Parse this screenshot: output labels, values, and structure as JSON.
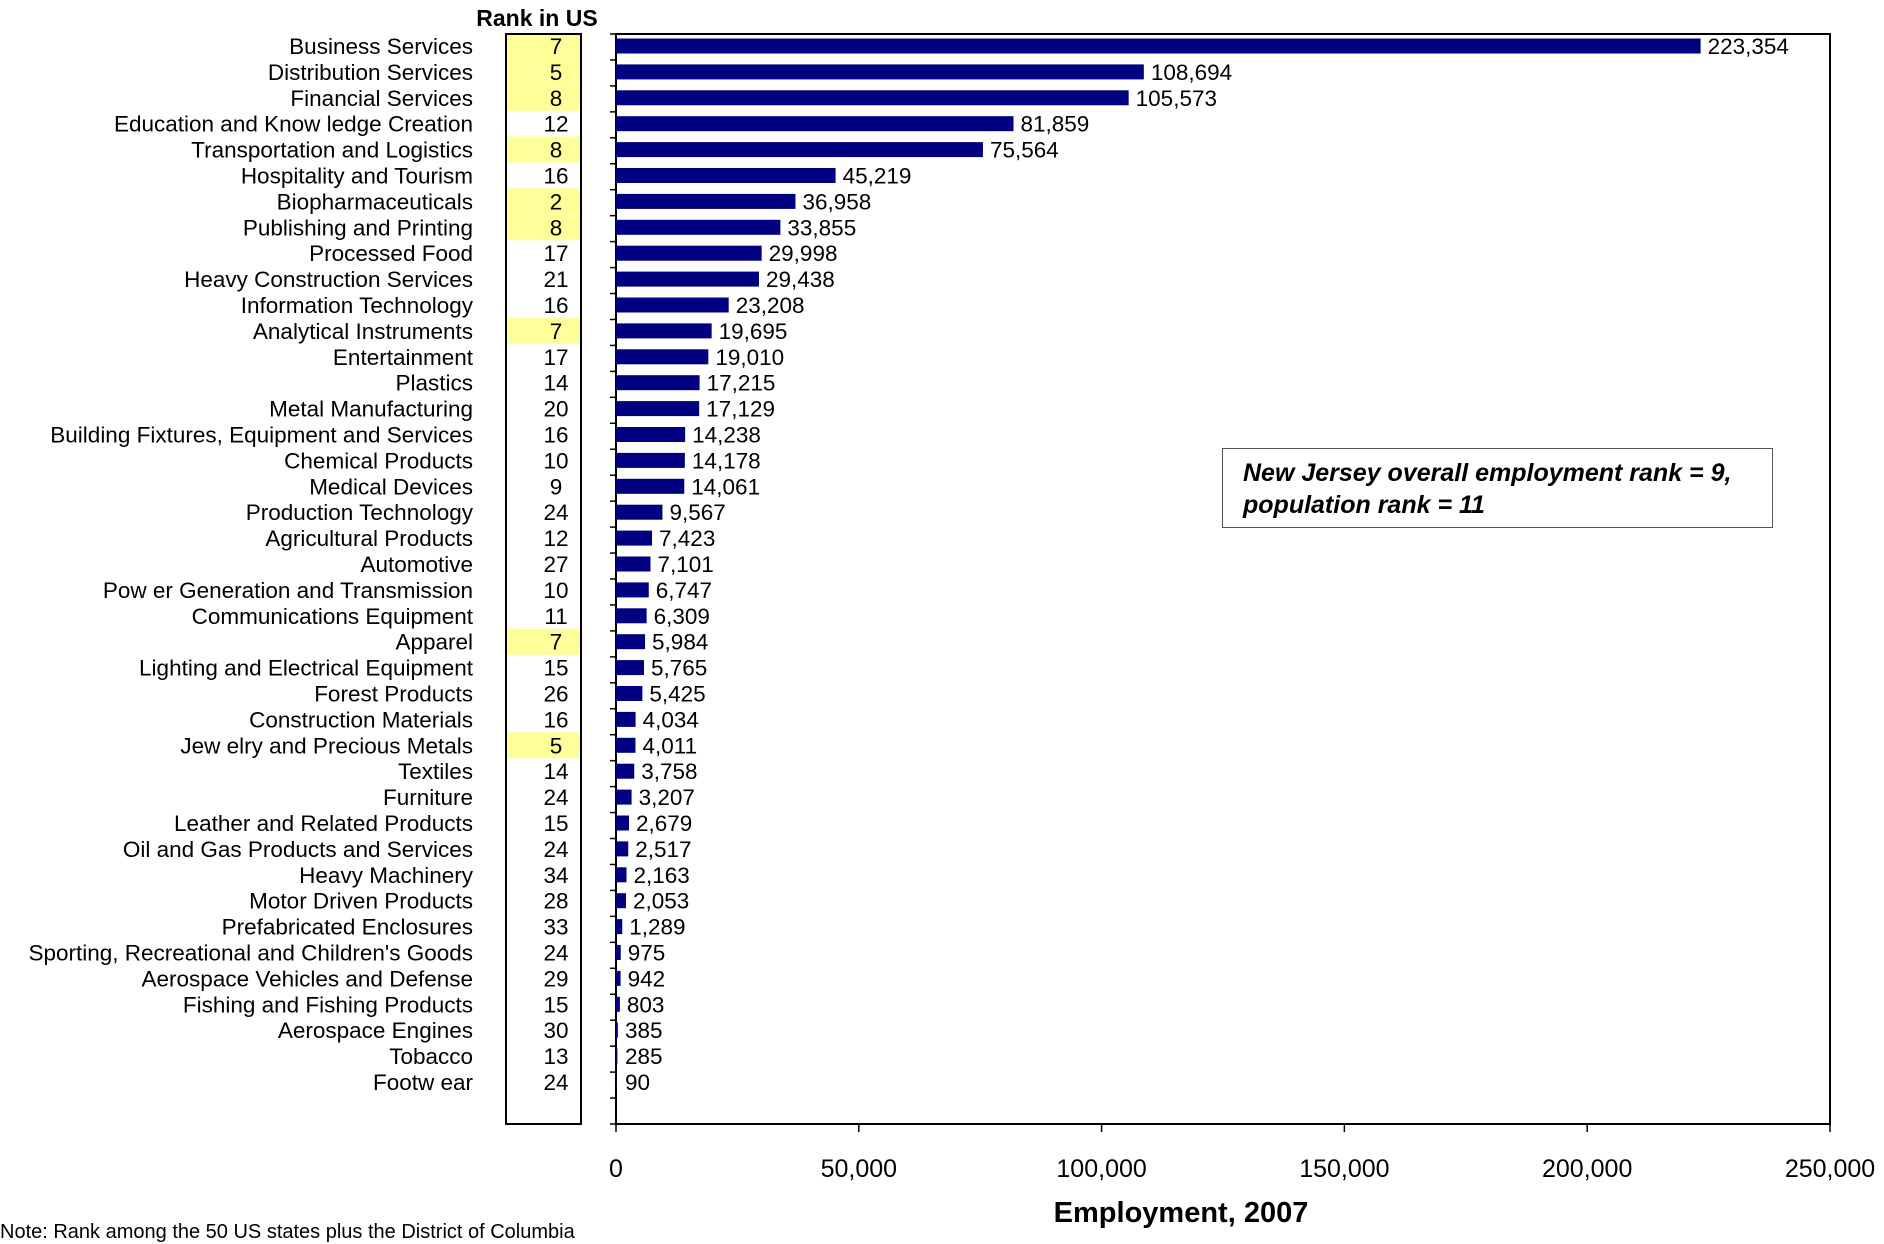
{
  "chart_data": {
    "type": "bar",
    "orientation": "horizontal",
    "rank_header": "Rank in US",
    "xlabel": "Employment, 2007",
    "xlim": [
      0,
      250000
    ],
    "xticks": [
      "0",
      "50,000",
      "100,000",
      "150,000",
      "200,000",
      "250,000"
    ],
    "bar_color": "#000080",
    "highlight_color": "#ffff99",
    "note_line1": "New Jersey overall employment rank = 9,",
    "note_line2": "population rank = 11",
    "footnote": "Note: Rank among the 50 US states plus the District of Columbia",
    "categories": [
      "Business Services",
      "Distribution Services",
      "Financial Services",
      "Education and Know ledge Creation",
      "Transportation and Logistics",
      "Hospitality and Tourism",
      "Biopharmaceuticals",
      "Publishing and Printing",
      "Processed Food",
      "Heavy Construction Services",
      "Information Technology",
      "Analytical Instruments",
      "Entertainment",
      "Plastics",
      "Metal Manufacturing",
      "Building Fixtures, Equipment and Services",
      "Chemical Products",
      "Medical Devices",
      "Production Technology",
      "Agricultural Products",
      "Automotive",
      "Pow er Generation and Transmission",
      "Communications Equipment",
      "Apparel",
      "Lighting and Electrical Equipment",
      "Forest Products",
      "Construction Materials",
      "Jew elry and Precious Metals",
      "Textiles",
      "Furniture",
      "Leather and Related Products",
      "Oil and Gas Products and Services",
      "Heavy Machinery",
      "Motor Driven Products",
      "Prefabricated Enclosures",
      "Sporting, Recreational and Children's Goods",
      "Aerospace Vehicles and Defense",
      "Fishing and Fishing Products",
      "Aerospace Engines",
      "Tobacco",
      "Footw ear"
    ],
    "values": [
      223354,
      108694,
      105573,
      81859,
      75564,
      45219,
      36958,
      33855,
      29998,
      29438,
      23208,
      19695,
      19010,
      17215,
      17129,
      14238,
      14178,
      14061,
      9567,
      7423,
      7101,
      6747,
      6309,
      5984,
      5765,
      5425,
      4034,
      4011,
      3758,
      3207,
      2679,
      2517,
      2163,
      2053,
      1289,
      975,
      942,
      803,
      385,
      285,
      90
    ],
    "value_labels": [
      "223,354",
      "108,694",
      "105,573",
      "81,859",
      "75,564",
      "45,219",
      "36,958",
      "33,855",
      "29,998",
      "29,438",
      "23,208",
      "19,695",
      "19,010",
      "17,215",
      "17,129",
      "14,238",
      "14,178",
      "14,061",
      "9,567",
      "7,423",
      "7,101",
      "6,747",
      "6,309",
      "5,984",
      "5,765",
      "5,425",
      "4,034",
      "4,011",
      "3,758",
      "3,207",
      "2,679",
      "2,517",
      "2,163",
      "2,053",
      "1,289",
      "975",
      "942",
      "803",
      "385",
      "285",
      "90"
    ],
    "ranks": [
      7,
      5,
      8,
      12,
      8,
      16,
      2,
      8,
      17,
      21,
      16,
      7,
      17,
      14,
      20,
      16,
      10,
      9,
      24,
      12,
      27,
      10,
      11,
      7,
      15,
      26,
      16,
      5,
      14,
      24,
      15,
      24,
      34,
      28,
      33,
      24,
      29,
      15,
      30,
      13,
      24
    ],
    "highlighted": [
      true,
      true,
      true,
      false,
      true,
      false,
      true,
      true,
      false,
      false,
      false,
      true,
      false,
      false,
      false,
      false,
      false,
      false,
      false,
      false,
      false,
      false,
      false,
      true,
      false,
      false,
      false,
      true,
      false,
      false,
      false,
      false,
      false,
      false,
      false,
      false,
      false,
      false,
      false,
      false,
      false
    ]
  }
}
